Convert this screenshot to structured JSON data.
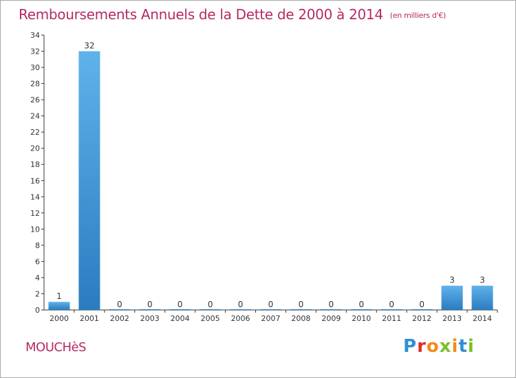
{
  "header": {
    "title": "Remboursements Annuels de la Dette de 2000 à 2014",
    "unit": "(en milliers d'€)"
  },
  "footer": {
    "commune": "MOUCHèS",
    "logo": "Proxiti"
  },
  "colors": {
    "title": "#b52a64",
    "bar_top": "#5fb2ea",
    "bar_bottom": "#2a7cc0",
    "axis": "#333333"
  },
  "chart_data": {
    "type": "bar",
    "title": "Remboursements Annuels de la Dette de 2000 à 2014",
    "categories": [
      "2000",
      "2001",
      "2002",
      "2003",
      "2004",
      "2005",
      "2006",
      "2007",
      "2008",
      "2009",
      "2010",
      "2011",
      "2012",
      "2013",
      "2014"
    ],
    "values": [
      1,
      32,
      0,
      0,
      0,
      0,
      0,
      0,
      0,
      0,
      0,
      0,
      0,
      3,
      3
    ],
    "data_labels": [
      "1",
      "32",
      "0",
      "0",
      "0",
      "0",
      "0",
      "0",
      "0",
      "0",
      "0",
      "0",
      "0",
      "3",
      "3"
    ],
    "ylim": [
      0,
      34
    ],
    "yticks": [
      0,
      2,
      4,
      6,
      8,
      10,
      12,
      14,
      16,
      18,
      20,
      22,
      24,
      26,
      28,
      30,
      32,
      34
    ],
    "grid": false,
    "xlabel": "",
    "ylabel": ""
  }
}
